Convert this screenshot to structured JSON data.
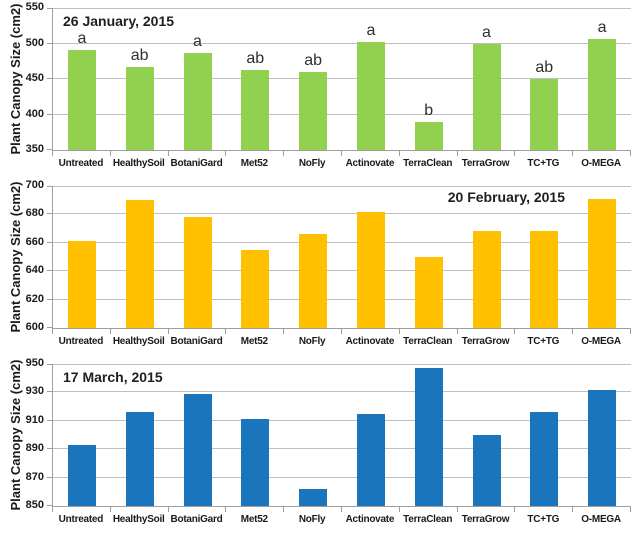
{
  "figure": {
    "background": "#FFFFFF",
    "gridline_color": "#BFBFBF",
    "axis_color": "#9E9E9E"
  },
  "chart_data": [
    {
      "type": "bar",
      "title": "26 January, 2015",
      "title_position": "top-left",
      "ylabel": "Plant Canopy Size (cm2)",
      "xlabel": "",
      "categories": [
        "Untreated",
        "HealthySoil",
        "BotaniGard",
        "Met52",
        "NoFly",
        "Actinovate",
        "TerraClean",
        "TerraGrow",
        "TC+TG",
        "O-MEGA"
      ],
      "values": [
        491,
        467,
        487,
        463,
        460,
        502,
        389,
        499,
        450,
        506
      ],
      "bar_labels": [
        "a",
        "ab",
        "a",
        "ab",
        "ab",
        "a",
        "b",
        "a",
        "ab",
        "a"
      ],
      "ylim": [
        350,
        550
      ],
      "ytick_step": 50,
      "bar_color": "#92D050",
      "grid": true,
      "legend": "none"
    },
    {
      "type": "bar",
      "title": "20 February, 2015",
      "title_position": "top-right",
      "ylabel": "Plant Canopy Size (cm2)",
      "xlabel": "",
      "categories": [
        "Untreated",
        "HealthySoil",
        "BotaniGard",
        "Met52",
        "NoFly",
        "Actinovate",
        "TerraClean",
        "TerraGrow",
        "TC+TG",
        "O-MEGA"
      ],
      "values": [
        661,
        690,
        678,
        655,
        666,
        682,
        650,
        668,
        668,
        691
      ],
      "bar_labels": [],
      "ylim": [
        600,
        700
      ],
      "ytick_step": 20,
      "bar_color": "#FFC000",
      "grid": true,
      "legend": "none"
    },
    {
      "type": "bar",
      "title": "17 March, 2015",
      "title_position": "top-left",
      "ylabel": "Plant Canopy Size (cm2)",
      "xlabel": "",
      "categories": [
        "Untreated",
        "HealthySoil",
        "BotaniGard",
        "Met52",
        "NoFly",
        "Actinovate",
        "TerraClean",
        "TerraGrow",
        "TC+TG",
        "O-MEGA"
      ],
      "values": [
        893,
        916,
        929,
        911,
        862,
        915,
        947,
        900,
        916,
        932
      ],
      "bar_labels": [],
      "ylim": [
        850,
        950
      ],
      "ytick_step": 20,
      "bar_color": "#1B75BC",
      "grid": true,
      "legend": "none"
    }
  ]
}
